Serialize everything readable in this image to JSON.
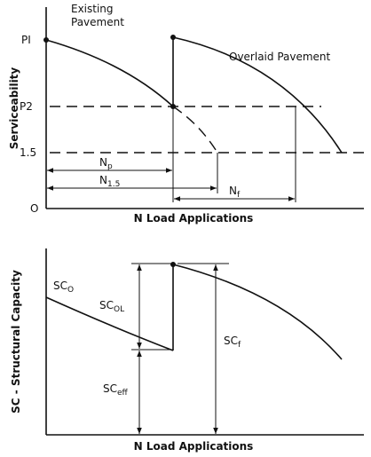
{
  "top_panel": {
    "y_axis_label": "Serviceability",
    "x_axis_label": "N Load Applications",
    "y_levels": [
      "PI",
      "P2",
      "1.5",
      "O"
    ],
    "existing_label": [
      "Existing",
      "Pavement"
    ],
    "overlaid_label": "Overlaid Pavement",
    "intervals": [
      {
        "main": "N",
        "sub": "p"
      },
      {
        "main": "N",
        "sub": "1.5"
      },
      {
        "main": "N",
        "sub": "f"
      }
    ]
  },
  "bottom_panel": {
    "y_axis_label": "SC - Structural Capacity",
    "x_axis_label": "N Load Applications",
    "labels": [
      {
        "main": "SC",
        "sub": "O"
      },
      {
        "main": "SC",
        "sub": "OL"
      },
      {
        "main": "SC",
        "sub": "eff"
      },
      {
        "main": "SC",
        "sub": "f"
      }
    ]
  }
}
